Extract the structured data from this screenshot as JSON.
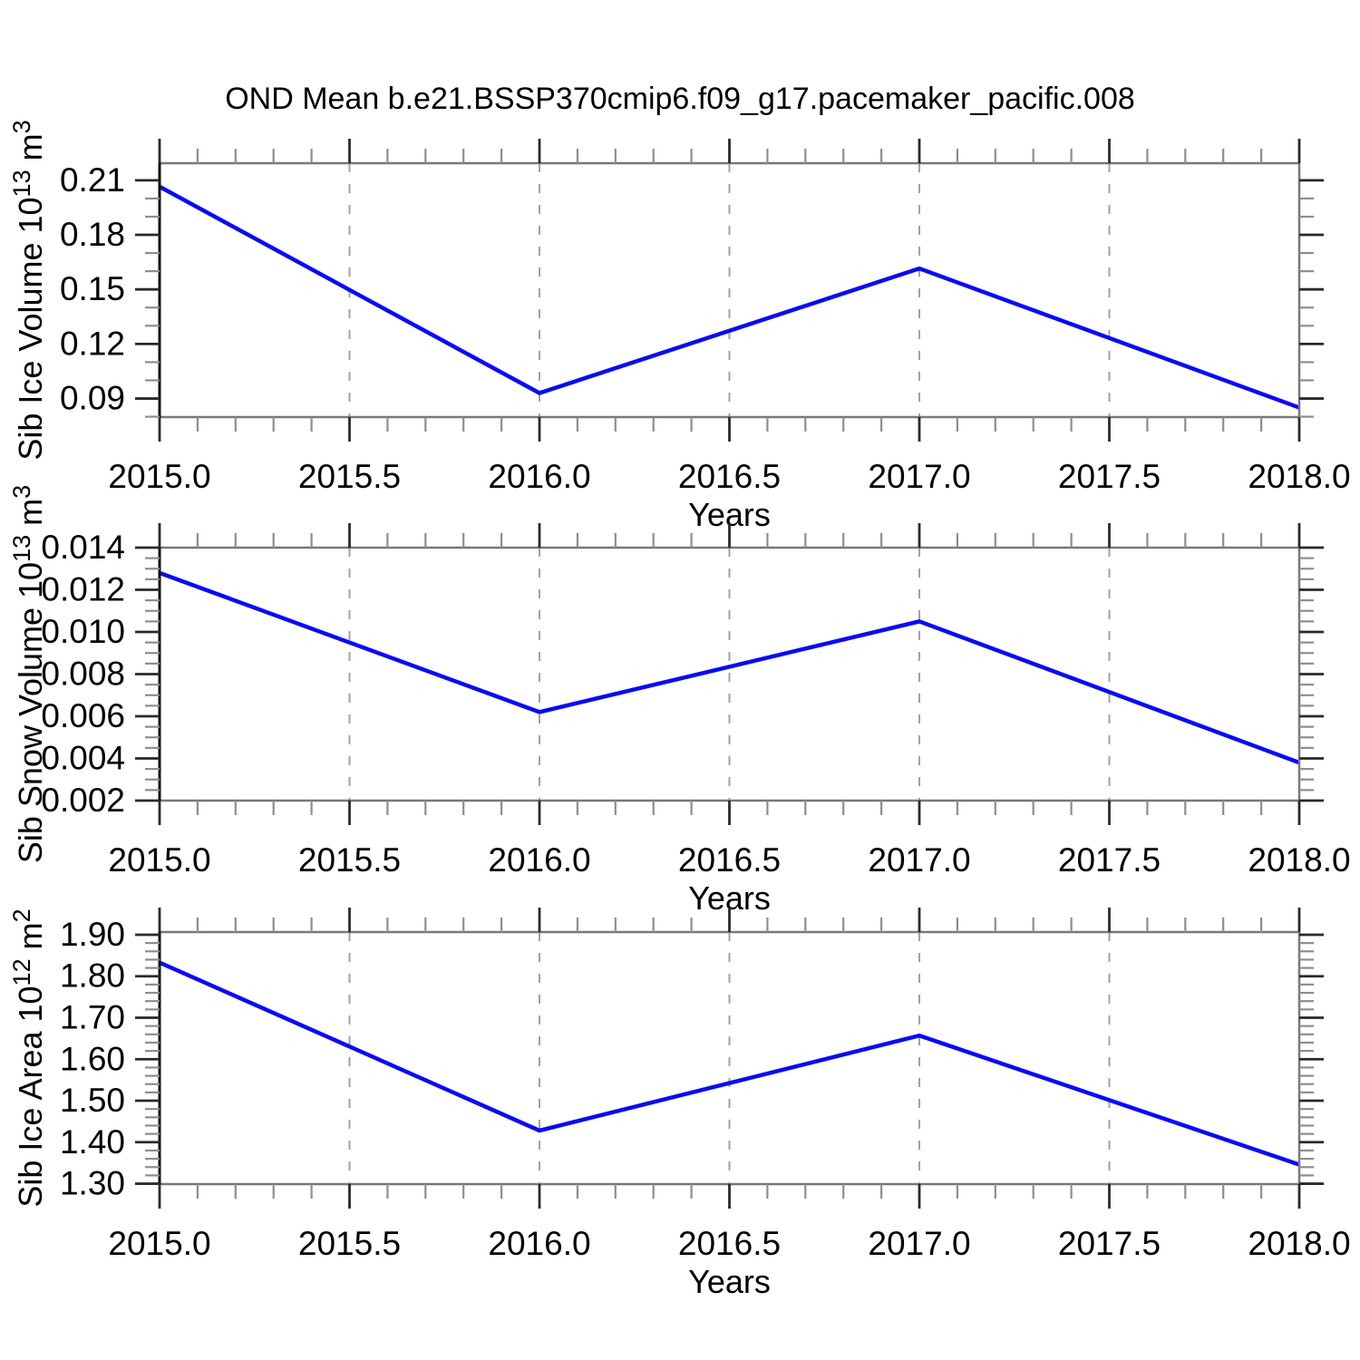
{
  "title": "OND Mean b.e21.BSSP370cmip6.f09_g17.pacemaker_pacific.008",
  "line_color": "#0a0af5",
  "grid_color": "#a2a2a2",
  "frame_color": "#787878",
  "axis_color": "#111111",
  "major_tick_color": "#2a2a2a",
  "minor_tick_color": "#8e8e8e",
  "chart_data": [
    {
      "type": "line",
      "name": "sib-ice-volume",
      "ylabel": "Sib Ice Volume 10^13 m^3",
      "ylabel_parts": [
        {
          "text": "Sib Ice Volume 10"
        },
        {
          "text": "13",
          "sup": true
        },
        {
          "text": " m"
        },
        {
          "text": "3",
          "sup": true
        }
      ],
      "xlabel": "Years",
      "x": [
        2015.0,
        2016.0,
        2017.0,
        2018.0
      ],
      "values": [
        0.2065,
        0.093,
        0.1615,
        0.085
      ],
      "xlim": [
        2015.0,
        2018.0
      ],
      "ylim": [
        0.0798,
        0.2194
      ],
      "xticks": [
        2015.0,
        2015.5,
        2016.0,
        2016.5,
        2017.0,
        2017.5,
        2018.0
      ],
      "xtick_decimals": 1,
      "x_minor_step": 0.1,
      "yticks": [
        0.21,
        0.18,
        0.15,
        0.12,
        0.09
      ],
      "ytick_decimals": 2,
      "y_minor_step": 0.01,
      "grid": "vertical-dashed-at-interior-x-majors",
      "legend": "none"
    },
    {
      "type": "line",
      "name": "sib-snow-volume",
      "ylabel": "Sib Snow Volume 10^13 m^3",
      "ylabel_parts": [
        {
          "text": "Sib Snow Volume 10"
        },
        {
          "text": "13",
          "sup": true
        },
        {
          "text": " m"
        },
        {
          "text": "3",
          "sup": true
        }
      ],
      "xlabel": "Years",
      "x": [
        2015.0,
        2016.0,
        2017.0,
        2018.0
      ],
      "values": [
        0.0128,
        0.0062,
        0.0105,
        0.0038
      ],
      "xlim": [
        2015.0,
        2018.0
      ],
      "ylim": [
        0.002,
        0.014
      ],
      "xticks": [
        2015.0,
        2015.5,
        2016.0,
        2016.5,
        2017.0,
        2017.5,
        2018.0
      ],
      "xtick_decimals": 1,
      "x_minor_step": 0.1,
      "yticks": [
        0.014,
        0.012,
        0.01,
        0.008,
        0.006,
        0.004,
        0.002
      ],
      "ytick_decimals": 3,
      "y_minor_step": 0.0005,
      "grid": "vertical-dashed-at-interior-x-majors",
      "legend": "none"
    },
    {
      "type": "line",
      "name": "sib-ice-area",
      "ylabel": "Sib Ice Area 10^12 m^2",
      "ylabel_parts": [
        {
          "text": "Sib Ice Area 10"
        },
        {
          "text": "12",
          "sup": true
        },
        {
          "text": " m"
        },
        {
          "text": "2",
          "sup": true
        }
      ],
      "xlabel": "Years",
      "x": [
        2015.0,
        2016.0,
        2017.0,
        2018.0
      ],
      "values": [
        1.833,
        1.428,
        1.657,
        1.346
      ],
      "xlim": [
        2015.0,
        2018.0
      ],
      "ylim": [
        1.299,
        1.9065
      ],
      "xticks": [
        2015.0,
        2015.5,
        2016.0,
        2016.5,
        2017.0,
        2017.5,
        2018.0
      ],
      "xtick_decimals": 1,
      "x_minor_step": 0.1,
      "yticks": [
        1.9,
        1.8,
        1.7,
        1.6,
        1.5,
        1.4,
        1.3
      ],
      "ytick_decimals": 2,
      "y_minor_step": 0.02,
      "grid": "vertical-dashed-at-interior-x-majors",
      "legend": "none"
    }
  ]
}
